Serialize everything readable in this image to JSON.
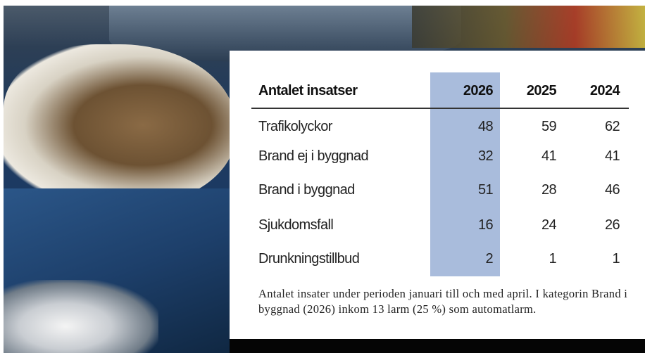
{
  "table": {
    "header": [
      "Antalet insatser",
      "2026",
      "2025",
      "2024"
    ],
    "rows": [
      [
        "Trafikolyckor",
        48,
        59,
        62
      ],
      [
        "Brand ej i byggnad",
        32,
        41,
        41
      ],
      [
        "Brand i byggnad",
        51,
        28,
        46
      ],
      [
        "Sjukdomsfall",
        16,
        24,
        26
      ],
      [
        "Drunkningstillbud",
        2,
        1,
        1
      ]
    ],
    "caption": "Antalet insater under perioden januari till och med april. I kategorin Brand i byggnad (2026) inkom 13 larm (25 %) som automatlarm."
  }
}
